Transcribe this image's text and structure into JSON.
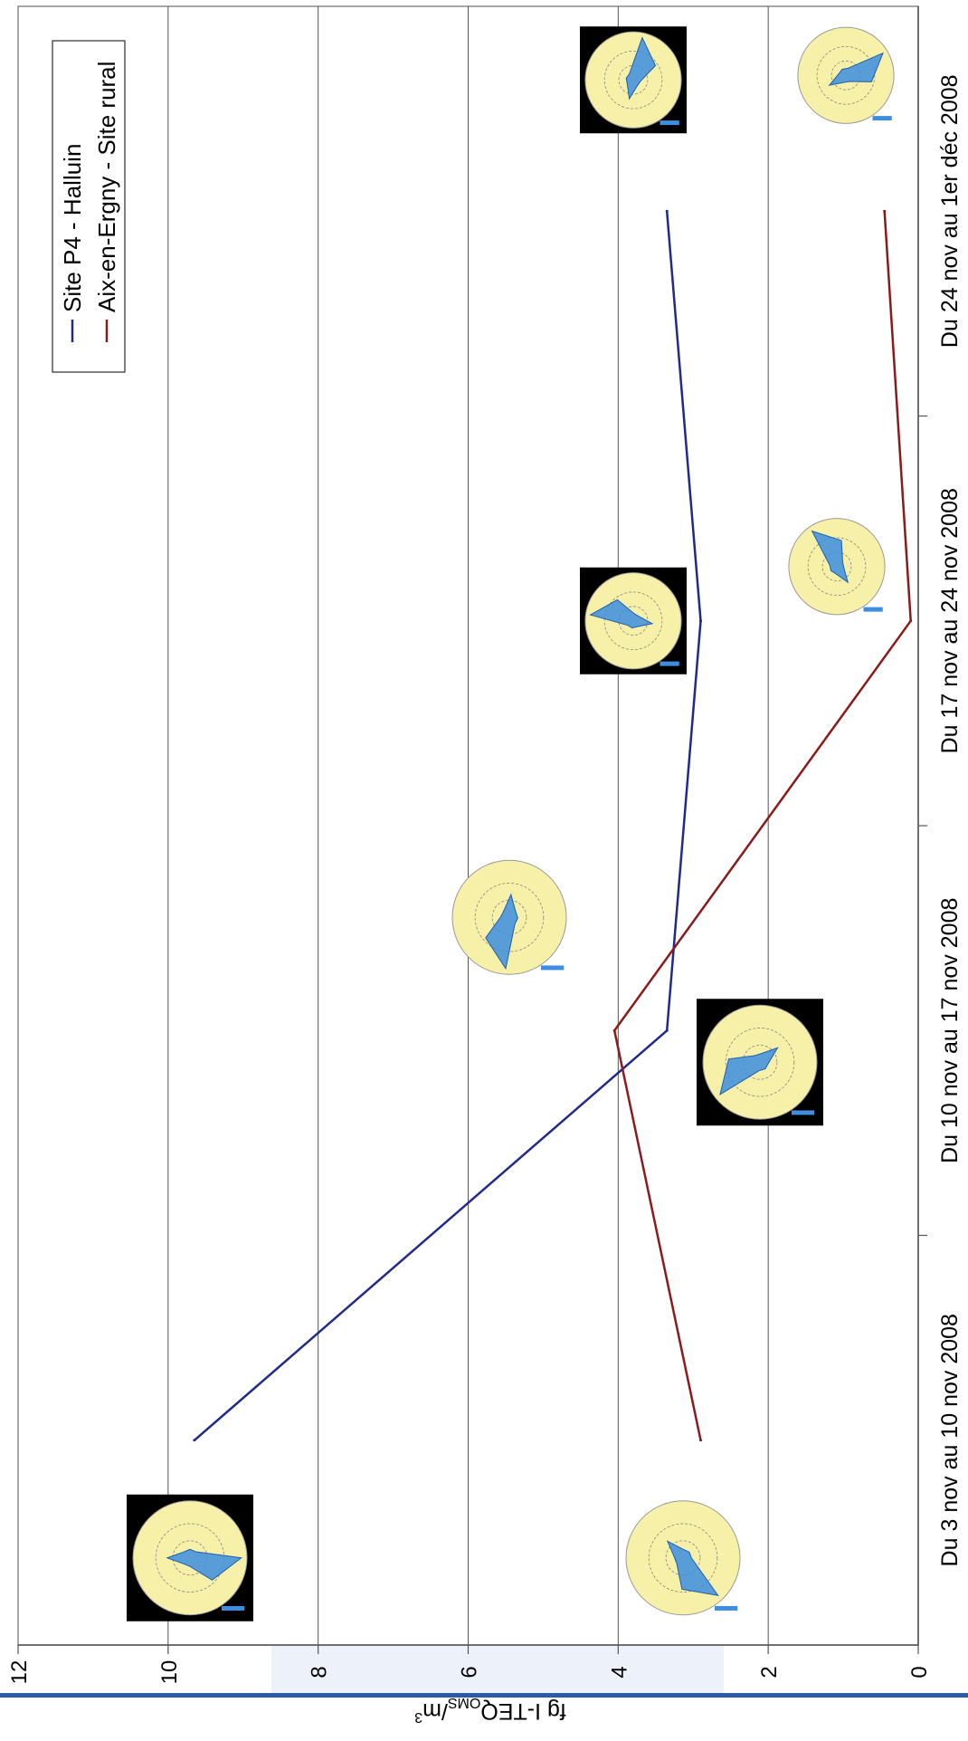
{
  "chart_data": {
    "type": "line",
    "orientation": "rotated 90 degrees clockwise",
    "categories": [
      "Du 3 nov au 10 nov 2008",
      "Du 10 nov au 17 nov 2008",
      "Du 17 nov au 24 nov 2008",
      "Du 24 nov au 1er déc 2008"
    ],
    "series": [
      {
        "name": "Site P4 - Halluin",
        "color": "#1f2a8a",
        "values": [
          9.65,
          3.35,
          2.9,
          3.35
        ]
      },
      {
        "name": "Aix-en-Ergny - Site rural",
        "color": "#8b1a1a",
        "values": [
          2.9,
          4.05,
          0.1,
          0.45
        ]
      }
    ],
    "ylabel": "fg I-TEQ",
    "ylabel_sub": "OMS",
    "ylabel_unit": "/m",
    "ylabel_sup": "3",
    "ylim": [
      0,
      12
    ],
    "yticks": [
      0,
      2,
      4,
      6,
      8,
      10,
      12
    ],
    "grid": true,
    "legend_position": "top-right",
    "wind_rose_images": 8
  },
  "icons": {
    "wind_rose": "wind-rose-icon"
  }
}
